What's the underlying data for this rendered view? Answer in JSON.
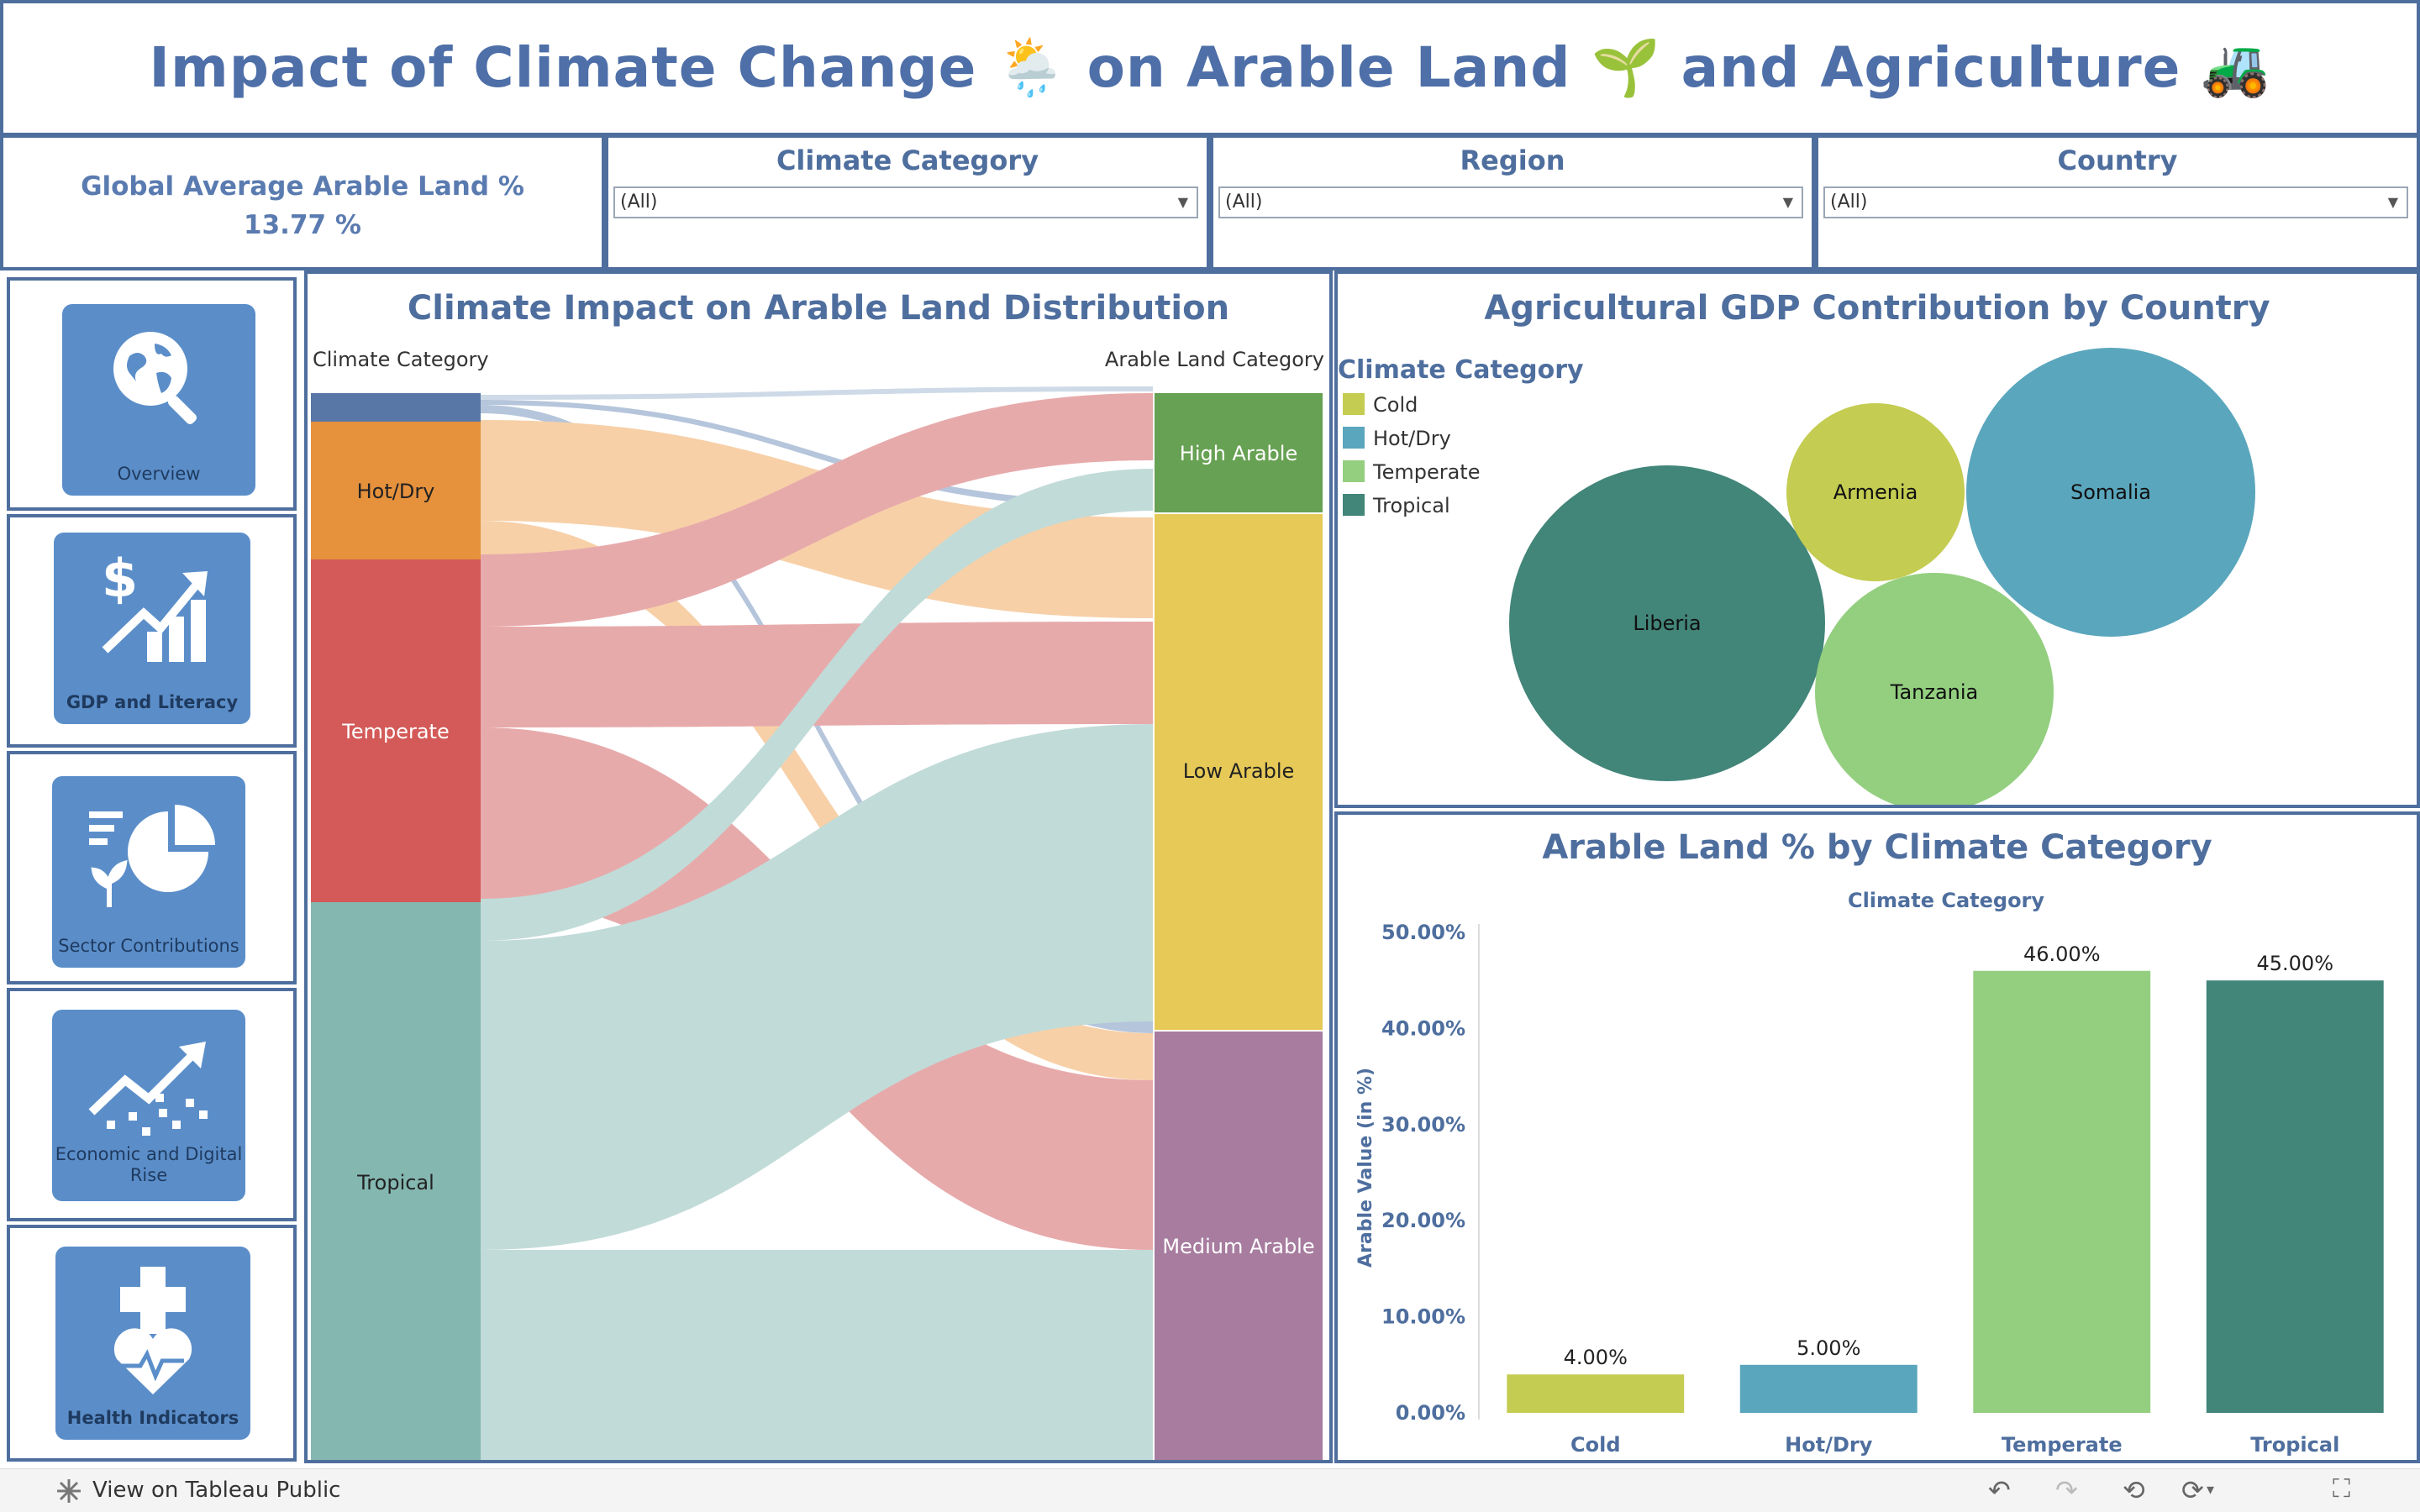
{
  "title": "Impact of Climate Change 🌦️ on Arable Land 🌱 and Agriculture 🚜",
  "kpi": {
    "label": "Global Average Arable Land %",
    "value": "13.77 %"
  },
  "filters": [
    {
      "title": "Climate Category",
      "value": "(All)"
    },
    {
      "title": "Region",
      "value": "(All)"
    },
    {
      "title": "Country",
      "value": "(All)"
    }
  ],
  "nav": [
    {
      "label": "Overview",
      "icon": "globe-search-icon"
    },
    {
      "label": "GDP and Literacy",
      "icon": "dollar-growth-icon"
    },
    {
      "label": "Sector Contributions",
      "icon": "pie-chart-icon"
    },
    {
      "label": "Economic and Digital Rise",
      "icon": "trend-scatter-icon"
    },
    {
      "label": "Health Indicators",
      "icon": "health-cross-heart-icon"
    }
  ],
  "sankey": {
    "title": "Climate Impact on Arable Land Distribution",
    "left_header": "Climate Category",
    "right_header": "Arable Land Category",
    "left_nodes": [
      "",
      "Hot/Dry",
      "Temperate",
      "Tropical"
    ],
    "right_nodes": [
      "High Arable",
      "Low Arable",
      "Medium Arable"
    ]
  },
  "bubble": {
    "title": "Agricultural GDP Contribution by Country",
    "legend_title": "Climate Category",
    "legend": [
      {
        "label": "Cold",
        "color": "#c4cc52"
      },
      {
        "label": "Hot/Dry",
        "color": "#5aa6bd"
      },
      {
        "label": "Temperate",
        "color": "#93cf7f"
      },
      {
        "label": "Tropical",
        "color": "#428579"
      }
    ],
    "countries": [
      "Liberia",
      "Armenia",
      "Somalia",
      "Tanzania"
    ]
  },
  "chart_data": {
    "type": "bar",
    "title": "Arable Land % by Climate Category",
    "subtitle": "Climate Category",
    "ylabel": "Arable Value (in %)",
    "categories": [
      "Cold",
      "Hot/Dry",
      "Temperate",
      "Tropical"
    ],
    "values": [
      4.0,
      5.0,
      46.0,
      45.0
    ],
    "value_labels": [
      "4.00%",
      "5.00%",
      "46.00%",
      "45.00%"
    ],
    "colors": [
      "#c4cc52",
      "#5aa6bd",
      "#93cf7f",
      "#428579"
    ],
    "yticks": [
      "0.00%",
      "10.00%",
      "20.00%",
      "30.00%",
      "40.00%",
      "50.00%"
    ],
    "ylim": [
      0,
      50
    ]
  },
  "footer": {
    "label": "View on Tableau Public"
  }
}
